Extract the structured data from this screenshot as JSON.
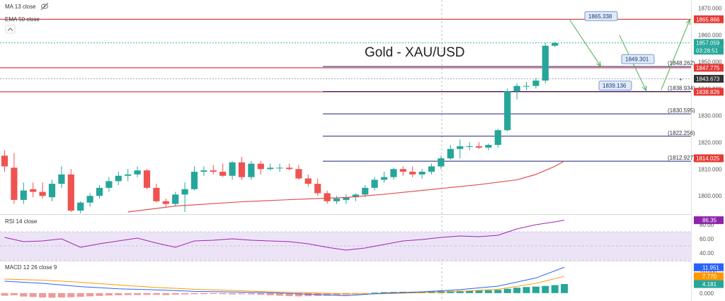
{
  "chart_data": {
    "type": "candlestick",
    "title": "Gold - XAU/USD",
    "indicators_top": [
      "MA 13 close",
      "EMA 50 close"
    ],
    "price_axis": {
      "range": [
        1794,
        1872
      ],
      "ticks": [
        "1870.000",
        "1860.000",
        "1850.000",
        "1840.000",
        "1830.000",
        "1820.000",
        "1810.000",
        "1800.000"
      ]
    },
    "candles": [
      {
        "o": 1815.0,
        "h": 1817.0,
        "l": 1809.0,
        "c": 1811.0
      },
      {
        "o": 1810.5,
        "h": 1816.0,
        "l": 1797.0,
        "c": 1798.5
      },
      {
        "o": 1798.5,
        "h": 1805.0,
        "l": 1797.0,
        "c": 1802.0
      },
      {
        "o": 1802.5,
        "h": 1805.0,
        "l": 1799.5,
        "c": 1801.5
      },
      {
        "o": 1801.5,
        "h": 1805.0,
        "l": 1799.0,
        "c": 1800.0
      },
      {
        "o": 1799.5,
        "h": 1806.0,
        "l": 1798.0,
        "c": 1804.5
      },
      {
        "o": 1804.5,
        "h": 1811.0,
        "l": 1803.0,
        "c": 1808.0
      },
      {
        "o": 1808.0,
        "h": 1810.0,
        "l": 1794.0,
        "c": 1794.5
      },
      {
        "o": 1794.5,
        "h": 1798.0,
        "l": 1793.5,
        "c": 1797.5
      },
      {
        "o": 1797.5,
        "h": 1801.0,
        "l": 1796.0,
        "c": 1800.0
      },
      {
        "o": 1800.0,
        "h": 1804.0,
        "l": 1799.0,
        "c": 1803.0
      },
      {
        "o": 1803.0,
        "h": 1807.0,
        "l": 1801.5,
        "c": 1805.5
      },
      {
        "o": 1805.5,
        "h": 1809.0,
        "l": 1804.0,
        "c": 1807.5
      },
      {
        "o": 1807.5,
        "h": 1810.0,
        "l": 1805.5,
        "c": 1808.0
      },
      {
        "o": 1808.0,
        "h": 1811.0,
        "l": 1807.0,
        "c": 1809.5
      },
      {
        "o": 1809.5,
        "h": 1810.0,
        "l": 1802.5,
        "c": 1803.0
      },
      {
        "o": 1803.0,
        "h": 1804.5,
        "l": 1797.5,
        "c": 1798.0
      },
      {
        "o": 1798.0,
        "h": 1799.0,
        "l": 1796.0,
        "c": 1797.0
      },
      {
        "o": 1797.0,
        "h": 1801.5,
        "l": 1796.0,
        "c": 1800.5
      },
      {
        "o": 1800.5,
        "h": 1805.0,
        "l": 1794.0,
        "c": 1802.5
      },
      {
        "o": 1802.5,
        "h": 1811.0,
        "l": 1802.0,
        "c": 1809.0
      },
      {
        "o": 1809.0,
        "h": 1811.0,
        "l": 1807.5,
        "c": 1809.5
      },
      {
        "o": 1809.5,
        "h": 1811.5,
        "l": 1808.0,
        "c": 1809.0
      },
      {
        "o": 1809.0,
        "h": 1812.0,
        "l": 1807.0,
        "c": 1807.5
      },
      {
        "o": 1807.5,
        "h": 1813.0,
        "l": 1806.0,
        "c": 1812.5
      },
      {
        "o": 1812.5,
        "h": 1814.5,
        "l": 1806.0,
        "c": 1807.0
      },
      {
        "o": 1807.0,
        "h": 1813.0,
        "l": 1806.0,
        "c": 1812.0
      },
      {
        "o": 1812.0,
        "h": 1813.0,
        "l": 1808.0,
        "c": 1810.0
      },
      {
        "o": 1810.0,
        "h": 1812.0,
        "l": 1809.5,
        "c": 1810.5
      },
      {
        "o": 1810.5,
        "h": 1812.0,
        "l": 1809.0,
        "c": 1810.5
      },
      {
        "o": 1810.5,
        "h": 1812.0,
        "l": 1809.5,
        "c": 1810.0
      },
      {
        "o": 1810.0,
        "h": 1811.5,
        "l": 1806.0,
        "c": 1806.5
      },
      {
        "o": 1806.5,
        "h": 1808.0,
        "l": 1803.5,
        "c": 1804.5
      },
      {
        "o": 1804.5,
        "h": 1806.5,
        "l": 1800.0,
        "c": 1801.0
      },
      {
        "o": 1801.0,
        "h": 1802.0,
        "l": 1797.0,
        "c": 1798.0
      },
      {
        "o": 1798.0,
        "h": 1800.0,
        "l": 1797.0,
        "c": 1799.0
      },
      {
        "o": 1798.5,
        "h": 1800.5,
        "l": 1797.0,
        "c": 1799.5
      },
      {
        "o": 1799.5,
        "h": 1801.0,
        "l": 1798.0,
        "c": 1800.5
      },
      {
        "o": 1800.5,
        "h": 1804.0,
        "l": 1799.5,
        "c": 1803.0
      },
      {
        "o": 1803.0,
        "h": 1807.0,
        "l": 1802.0,
        "c": 1806.0
      },
      {
        "o": 1806.0,
        "h": 1809.0,
        "l": 1805.0,
        "c": 1807.0
      },
      {
        "o": 1807.0,
        "h": 1810.5,
        "l": 1806.0,
        "c": 1810.0
      },
      {
        "o": 1810.0,
        "h": 1811.0,
        "l": 1807.5,
        "c": 1809.0
      },
      {
        "o": 1809.0,
        "h": 1811.0,
        "l": 1807.0,
        "c": 1808.0
      },
      {
        "o": 1808.0,
        "h": 1810.0,
        "l": 1806.5,
        "c": 1809.0
      },
      {
        "o": 1809.0,
        "h": 1812.0,
        "l": 1808.0,
        "c": 1811.0
      },
      {
        "o": 1811.0,
        "h": 1815.0,
        "l": 1810.0,
        "c": 1814.0
      },
      {
        "o": 1814.0,
        "h": 1819.0,
        "l": 1813.5,
        "c": 1817.5
      },
      {
        "o": 1817.5,
        "h": 1821.0,
        "l": 1814.0,
        "c": 1818.5
      },
      {
        "o": 1818.5,
        "h": 1820.0,
        "l": 1817.0,
        "c": 1818.5
      },
      {
        "o": 1818.5,
        "h": 1820.0,
        "l": 1817.5,
        "c": 1818.0
      },
      {
        "o": 1818.0,
        "h": 1819.5,
        "l": 1817.0,
        "c": 1819.0
      },
      {
        "o": 1819.0,
        "h": 1825.0,
        "l": 1818.0,
        "c": 1824.5
      },
      {
        "o": 1824.5,
        "h": 1840.0,
        "l": 1824.0,
        "c": 1839.0
      },
      {
        "o": 1839.0,
        "h": 1842.0,
        "l": 1836.0,
        "c": 1841.0
      },
      {
        "o": 1841.0,
        "h": 1842.5,
        "l": 1839.5,
        "c": 1841.0
      },
      {
        "o": 1841.0,
        "h": 1844.0,
        "l": 1840.0,
        "c": 1843.0
      },
      {
        "o": 1843.0,
        "h": 1857.0,
        "l": 1842.0,
        "c": 1856.0
      },
      {
        "o": 1856.0,
        "h": 1857.5,
        "l": 1855.5,
        "c": 1857.0
      }
    ],
    "ema50": [
      {
        "i": 13,
        "v": 1794.0
      },
      {
        "i": 18,
        "v": 1796.2
      },
      {
        "i": 25,
        "v": 1797.8
      },
      {
        "i": 30,
        "v": 1798.6
      },
      {
        "i": 33,
        "v": 1799.0
      },
      {
        "i": 36,
        "v": 1799.4
      },
      {
        "i": 40,
        "v": 1800.6
      },
      {
        "i": 45,
        "v": 1802.4
      },
      {
        "i": 50,
        "v": 1804.2
      },
      {
        "i": 54,
        "v": 1806.0
      },
      {
        "i": 56,
        "v": 1808.0
      },
      {
        "i": 58,
        "v": 1811.0
      },
      {
        "i": 59,
        "v": 1813.0
      }
    ],
    "horizontal_lines": [
      {
        "price": 1865.866,
        "label": "1865.866",
        "color": "#d32f2f",
        "tag_bg": "#e53935",
        "from": "left"
      },
      {
        "price": 1847.775,
        "label": "1847.775",
        "color": "#d32f2f",
        "tag_bg": "#e53935",
        "from": "left"
      },
      {
        "price": 1838.826,
        "label": "1838.826",
        "color": "#d32f2f",
        "tag_bg": "#e53935",
        "from": "left"
      },
      {
        "price": 1857.059,
        "label": "1857.059",
        "color": "#26a69a",
        "tag_bg": "#26a69a",
        "from": "left",
        "dash": true
      },
      {
        "price": 1843.673,
        "label": "1843.673",
        "color": "#888888",
        "tag_bg": "#333333",
        "from": "left",
        "dash": true
      }
    ],
    "countdown": "03:28:51",
    "fib_levels": [
      {
        "price": 1848.262,
        "label": "(1848.262)"
      },
      {
        "price": 1838.934,
        "label": "(1838.934)"
      },
      {
        "price": 1830.595,
        "label": "(1830.595)"
      },
      {
        "price": 1822.256,
        "label": "(1822.256)"
      },
      {
        "price": 1812.927,
        "label": "(1812.927)"
      }
    ],
    "fib_line_color": "#1a237e",
    "ema_tag": {
      "price": 1814.025,
      "label": "1814.025",
      "tag_bg": "#e53935"
    },
    "callouts": [
      {
        "text": "1865.338",
        "price": 1865.338
      },
      {
        "text": "1849.301",
        "price": 1849.301
      },
      {
        "text": "1839.136",
        "price": 1839.136
      }
    ],
    "projection_arrows": [
      {
        "from": {
          "i": 59.5,
          "p": 1866
        },
        "to": {
          "i": 62.8,
          "p": 1848.5
        }
      },
      {
        "from": {
          "i": 64.8,
          "p": 1860
        },
        "to": {
          "i": 67.6,
          "p": 1839.5
        }
      },
      {
        "from": {
          "i": 69.2,
          "p": 1839.5
        },
        "to": {
          "i": 72.2,
          "p": 1865.5
        }
      }
    ],
    "rsi": {
      "label": "RSI 14 close",
      "value_label": "86.35",
      "range": [
        30,
        92
      ],
      "ticks": [
        "80.00",
        "60.00",
        "40.00"
      ],
      "band": [
        30,
        70
      ],
      "series": [
        {
          "i": 0,
          "v": 62
        },
        {
          "i": 2,
          "v": 56
        },
        {
          "i": 4,
          "v": 57
        },
        {
          "i": 6,
          "v": 60
        },
        {
          "i": 8,
          "v": 48
        },
        {
          "i": 10,
          "v": 53
        },
        {
          "i": 12,
          "v": 57
        },
        {
          "i": 14,
          "v": 61
        },
        {
          "i": 16,
          "v": 54
        },
        {
          "i": 18,
          "v": 48
        },
        {
          "i": 20,
          "v": 57
        },
        {
          "i": 22,
          "v": 58
        },
        {
          "i": 24,
          "v": 60
        },
        {
          "i": 26,
          "v": 58
        },
        {
          "i": 28,
          "v": 57
        },
        {
          "i": 30,
          "v": 56
        },
        {
          "i": 32,
          "v": 53
        },
        {
          "i": 34,
          "v": 48
        },
        {
          "i": 36,
          "v": 44
        },
        {
          "i": 38,
          "v": 47
        },
        {
          "i": 40,
          "v": 52
        },
        {
          "i": 42,
          "v": 57
        },
        {
          "i": 44,
          "v": 59
        },
        {
          "i": 46,
          "v": 62
        },
        {
          "i": 48,
          "v": 64
        },
        {
          "i": 50,
          "v": 63
        },
        {
          "i": 52,
          "v": 65
        },
        {
          "i": 54,
          "v": 74
        },
        {
          "i": 56,
          "v": 80
        },
        {
          "i": 58,
          "v": 84
        },
        {
          "i": 59,
          "v": 86.35
        }
      ]
    },
    "macd": {
      "label": "MACD 12 26 close 9",
      "values": {
        "macd": "11.951",
        "signal": "7.770",
        "hist": "4.181"
      },
      "range": [
        -3,
        14
      ],
      "ticks": [
        "10.000",
        "5.000",
        "0.000"
      ],
      "macd_line": [
        {
          "i": 0,
          "v": 5.5
        },
        {
          "i": 4,
          "v": 4.5
        },
        {
          "i": 8,
          "v": 3.0
        },
        {
          "i": 12,
          "v": 2.0
        },
        {
          "i": 16,
          "v": 1.5
        },
        {
          "i": 20,
          "v": 0.8
        },
        {
          "i": 24,
          "v": 0.5
        },
        {
          "i": 28,
          "v": 0.2
        },
        {
          "i": 32,
          "v": -0.5
        },
        {
          "i": 36,
          "v": -1.2
        },
        {
          "i": 40,
          "v": 0.0
        },
        {
          "i": 44,
          "v": 0.6
        },
        {
          "i": 48,
          "v": 1.6
        },
        {
          "i": 52,
          "v": 3.2
        },
        {
          "i": 56,
          "v": 7.0
        },
        {
          "i": 59,
          "v": 11.951
        }
      ],
      "signal_line": [
        {
          "i": 0,
          "v": 6.5
        },
        {
          "i": 4,
          "v": 6.0
        },
        {
          "i": 8,
          "v": 5.0
        },
        {
          "i": 12,
          "v": 3.8
        },
        {
          "i": 16,
          "v": 2.6
        },
        {
          "i": 20,
          "v": 1.8
        },
        {
          "i": 24,
          "v": 1.2
        },
        {
          "i": 28,
          "v": 0.6
        },
        {
          "i": 32,
          "v": 0.2
        },
        {
          "i": 36,
          "v": -0.4
        },
        {
          "i": 40,
          "v": -0.3
        },
        {
          "i": 44,
          "v": 0.2
        },
        {
          "i": 48,
          "v": 0.8
        },
        {
          "i": 52,
          "v": 1.8
        },
        {
          "i": 56,
          "v": 4.5
        },
        {
          "i": 59,
          "v": 7.77
        }
      ],
      "histogram": [
        -1.2,
        -1.0,
        -1.6,
        -1.8,
        -2.0,
        -2.1,
        -2.0,
        -1.9,
        -1.7,
        -1.5,
        -1.3,
        -1.1,
        -1.0,
        -0.9,
        -0.9,
        -0.8,
        -0.8,
        -0.9,
        -0.7,
        -0.6,
        -0.5,
        -0.5,
        -0.4,
        -0.5,
        -0.6,
        -0.5,
        -0.6,
        -0.8,
        -1.0,
        -1.2,
        -1.4,
        -1.5,
        -1.4,
        -1.3,
        -1.2,
        -1.0,
        -0.8,
        -0.6,
        -0.3,
        0.2,
        0.4,
        0.5,
        0.6,
        0.6,
        0.7,
        0.8,
        0.9,
        1.0,
        1.1,
        1.1,
        1.2,
        1.3,
        1.5,
        2.0,
        2.5,
        2.8,
        3.0,
        3.3,
        3.7,
        4.181
      ]
    },
    "colors": {
      "up": "#26a69a",
      "down": "#ef5350",
      "ema": "#e05252",
      "rsi_line": "#9c27b0",
      "rsi_band": "#ede3f7",
      "macd_line": "#2962ff",
      "signal_line": "#ff9800",
      "arrow": "#4caf50",
      "callout_bg": "#dfe9f7",
      "callout_border": "#5b7fbf"
    }
  }
}
